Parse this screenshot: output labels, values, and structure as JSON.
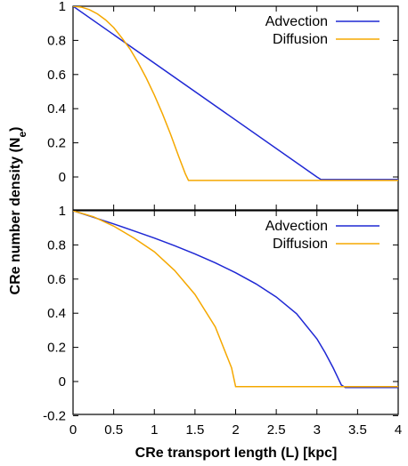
{
  "chart_data": [
    {
      "type": "line",
      "panel": "top",
      "xlim": [
        0,
        4
      ],
      "ylim": [
        -0.2,
        1
      ],
      "yticks": [
        "0",
        "0.2",
        "0.4",
        "0.6",
        "0.8",
        "1"
      ],
      "legend_position": "top-right",
      "series": [
        {
          "name": "Advection",
          "color": "#1f28d4",
          "x": [
            0,
            3.0,
            3.05,
            4.0
          ],
          "y": [
            1.0,
            0.0,
            -0.015,
            -0.015
          ]
        },
        {
          "name": "Diffusion",
          "color": "#f5a800",
          "x": [
            0,
            0.1,
            0.2,
            0.3,
            0.4,
            0.5,
            0.6,
            0.7,
            0.8,
            0.9,
            1.0,
            1.1,
            1.2,
            1.3,
            1.38,
            1.42,
            2.0,
            3.0,
            4.0
          ],
          "y": [
            1.0,
            0.995,
            0.98,
            0.955,
            0.92,
            0.875,
            0.815,
            0.75,
            0.67,
            0.58,
            0.48,
            0.37,
            0.25,
            0.12,
            0.02,
            -0.02,
            -0.02,
            -0.02,
            -0.02
          ]
        }
      ]
    },
    {
      "type": "line",
      "panel": "bottom",
      "xlim": [
        0,
        4
      ],
      "ylim": [
        -0.2,
        1
      ],
      "yticks": [
        "-0.2",
        "0",
        "0.2",
        "0.4",
        "0.6",
        "0.8",
        "1"
      ],
      "xticks": [
        "0",
        "0.5",
        "1",
        "1.5",
        "2",
        "2.5",
        "3",
        "3.5",
        "4"
      ],
      "legend_position": "top-right",
      "series": [
        {
          "name": "Advection",
          "color": "#1f28d4",
          "x": [
            0,
            0.25,
            0.5,
            0.75,
            1.0,
            1.25,
            1.5,
            1.75,
            2.0,
            2.25,
            2.5,
            2.75,
            3.0,
            3.1,
            3.2,
            3.25,
            3.3,
            3.35,
            4.0
          ],
          "y": [
            1.0,
            0.962,
            0.923,
            0.882,
            0.84,
            0.795,
            0.747,
            0.695,
            0.637,
            0.572,
            0.495,
            0.397,
            0.25,
            0.17,
            0.08,
            0.03,
            -0.02,
            -0.035,
            -0.035
          ]
        },
        {
          "name": "Diffusion",
          "color": "#f5a800",
          "x": [
            0,
            0.25,
            0.5,
            0.75,
            1.0,
            1.25,
            1.5,
            1.75,
            1.95,
            2.0,
            2.5,
            3.0,
            3.5,
            4.0
          ],
          "y": [
            1.0,
            0.965,
            0.91,
            0.84,
            0.76,
            0.65,
            0.51,
            0.32,
            0.08,
            -0.03,
            -0.03,
            -0.03,
            -0.03,
            -0.03
          ]
        }
      ]
    }
  ],
  "ylabel": "CRe number density (N",
  "ylabel_sub": "e",
  "ylabel_close": ")",
  "xlabel": "CRe transport length (L) [kpc]"
}
